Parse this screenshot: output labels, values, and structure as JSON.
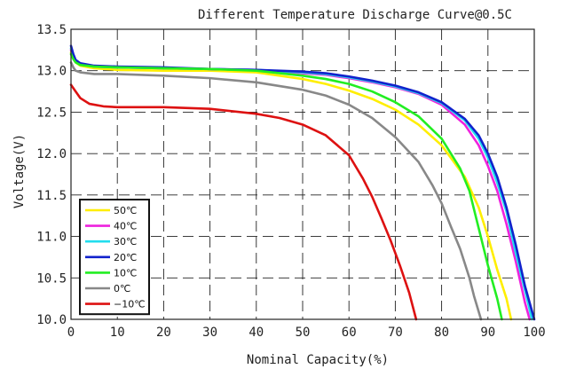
{
  "chart_data": {
    "type": "line",
    "title": "Different Temperature Discharge Curve@0.5C",
    "xlabel": "Nominal Capacity(%)",
    "ylabel": "Voltage(V)",
    "xlim": [
      0,
      100
    ],
    "ylim": [
      10.0,
      13.5
    ],
    "x_ticks": [
      "0",
      "10",
      "20",
      "30",
      "40",
      "50",
      "60",
      "70",
      "80",
      "90",
      "100"
    ],
    "y_ticks": [
      "10.0",
      "10.5",
      "11.0",
      "11.5",
      "12.0",
      "12.5",
      "13.0",
      "13.5"
    ],
    "grid": true,
    "grid_style": "dashed",
    "legend_position": "bottom-left",
    "series": [
      {
        "name": "50℃",
        "color": "#ffee00",
        "points": [
          [
            0,
            13.22
          ],
          [
            0.5,
            13.15
          ],
          [
            1,
            13.1
          ],
          [
            2,
            13.06
          ],
          [
            5,
            13.03
          ],
          [
            10,
            13.01
          ],
          [
            20,
            13.0
          ],
          [
            30,
            13.0
          ],
          [
            40,
            12.98
          ],
          [
            50,
            12.9
          ],
          [
            55,
            12.84
          ],
          [
            60,
            12.76
          ],
          [
            65,
            12.66
          ],
          [
            70,
            12.53
          ],
          [
            75,
            12.35
          ],
          [
            80,
            12.1
          ],
          [
            85,
            11.72
          ],
          [
            88,
            11.35
          ],
          [
            90,
            11.0
          ],
          [
            92,
            10.6
          ],
          [
            94,
            10.25
          ],
          [
            95,
            10.0
          ]
        ]
      },
      {
        "name": "40℃",
        "color": "#ee22dd",
        "points": [
          [
            0,
            13.25
          ],
          [
            0.5,
            13.17
          ],
          [
            1,
            13.12
          ],
          [
            2,
            13.08
          ],
          [
            5,
            13.05
          ],
          [
            10,
            13.04
          ],
          [
            20,
            13.03
          ],
          [
            30,
            13.02
          ],
          [
            40,
            13.01
          ],
          [
            50,
            12.97
          ],
          [
            55,
            12.95
          ],
          [
            60,
            12.91
          ],
          [
            65,
            12.86
          ],
          [
            70,
            12.8
          ],
          [
            75,
            12.72
          ],
          [
            80,
            12.59
          ],
          [
            85,
            12.35
          ],
          [
            88,
            12.1
          ],
          [
            90,
            11.85
          ],
          [
            92,
            11.55
          ],
          [
            94,
            11.15
          ],
          [
            96,
            10.7
          ],
          [
            97,
            10.45
          ],
          [
            98,
            10.2
          ],
          [
            99,
            10.0
          ]
        ]
      },
      {
        "name": "30℃",
        "color": "#22ddee",
        "points": [
          [
            0,
            13.27
          ],
          [
            0.5,
            13.18
          ],
          [
            1,
            13.12
          ],
          [
            2,
            13.08
          ],
          [
            5,
            13.05
          ],
          [
            10,
            13.04
          ],
          [
            20,
            13.03
          ],
          [
            30,
            13.02
          ],
          [
            40,
            13.01
          ],
          [
            50,
            12.98
          ],
          [
            55,
            12.96
          ],
          [
            60,
            12.92
          ],
          [
            65,
            12.87
          ],
          [
            70,
            12.81
          ],
          [
            75,
            12.73
          ],
          [
            80,
            12.61
          ],
          [
            85,
            12.4
          ],
          [
            88,
            12.18
          ],
          [
            90,
            11.95
          ],
          [
            92,
            11.65
          ],
          [
            94,
            11.3
          ],
          [
            96,
            10.8
          ],
          [
            98,
            10.35
          ],
          [
            99.5,
            10.0
          ]
        ]
      },
      {
        "name": "20℃",
        "color": "#1122cc",
        "points": [
          [
            0,
            13.3
          ],
          [
            0.5,
            13.2
          ],
          [
            1,
            13.13
          ],
          [
            2,
            13.09
          ],
          [
            5,
            13.06
          ],
          [
            10,
            13.05
          ],
          [
            20,
            13.04
          ],
          [
            30,
            13.02
          ],
          [
            40,
            13.01
          ],
          [
            50,
            12.99
          ],
          [
            55,
            12.97
          ],
          [
            60,
            12.93
          ],
          [
            65,
            12.88
          ],
          [
            70,
            12.82
          ],
          [
            75,
            12.74
          ],
          [
            80,
            12.62
          ],
          [
            85,
            12.42
          ],
          [
            88,
            12.22
          ],
          [
            90,
            12.0
          ],
          [
            92,
            11.72
          ],
          [
            94,
            11.35
          ],
          [
            96,
            10.9
          ],
          [
            98,
            10.4
          ],
          [
            100,
            10.0
          ]
        ]
      },
      {
        "name": "10℃",
        "color": "#22ee22",
        "points": [
          [
            0,
            13.2
          ],
          [
            0.5,
            13.14
          ],
          [
            1,
            13.1
          ],
          [
            2,
            13.07
          ],
          [
            5,
            13.05
          ],
          [
            10,
            13.04
          ],
          [
            20,
            13.03
          ],
          [
            30,
            13.02
          ],
          [
            40,
            13.0
          ],
          [
            50,
            12.94
          ],
          [
            55,
            12.9
          ],
          [
            60,
            12.84
          ],
          [
            65,
            12.75
          ],
          [
            70,
            12.62
          ],
          [
            75,
            12.45
          ],
          [
            80,
            12.18
          ],
          [
            84,
            11.82
          ],
          [
            86,
            11.55
          ],
          [
            88,
            11.1
          ],
          [
            90,
            10.65
          ],
          [
            92,
            10.25
          ],
          [
            93,
            10.0
          ]
        ]
      },
      {
        "name": "0℃",
        "color": "#888888",
        "points": [
          [
            0,
            13.1
          ],
          [
            0.5,
            13.04
          ],
          [
            1,
            13.0
          ],
          [
            2,
            12.98
          ],
          [
            5,
            12.96
          ],
          [
            10,
            12.96
          ],
          [
            20,
            12.94
          ],
          [
            30,
            12.91
          ],
          [
            40,
            12.86
          ],
          [
            50,
            12.77
          ],
          [
            55,
            12.7
          ],
          [
            60,
            12.59
          ],
          [
            65,
            12.43
          ],
          [
            70,
            12.2
          ],
          [
            75,
            11.9
          ],
          [
            78,
            11.62
          ],
          [
            80,
            11.4
          ],
          [
            82,
            11.12
          ],
          [
            84,
            10.85
          ],
          [
            86,
            10.5
          ],
          [
            87,
            10.28
          ],
          [
            88.5,
            10.0
          ]
        ]
      },
      {
        "name": "−10℃",
        "color": "#dd1111",
        "points": [
          [
            0,
            12.83
          ],
          [
            1,
            12.75
          ],
          [
            2,
            12.67
          ],
          [
            4,
            12.6
          ],
          [
            7,
            12.57
          ],
          [
            10,
            12.56
          ],
          [
            20,
            12.56
          ],
          [
            30,
            12.54
          ],
          [
            40,
            12.48
          ],
          [
            45,
            12.43
          ],
          [
            50,
            12.35
          ],
          [
            55,
            12.22
          ],
          [
            60,
            11.98
          ],
          [
            63,
            11.7
          ],
          [
            65,
            11.48
          ],
          [
            67,
            11.22
          ],
          [
            69,
            10.95
          ],
          [
            71,
            10.65
          ],
          [
            73,
            10.32
          ],
          [
            74.5,
            10.0
          ]
        ]
      }
    ]
  }
}
